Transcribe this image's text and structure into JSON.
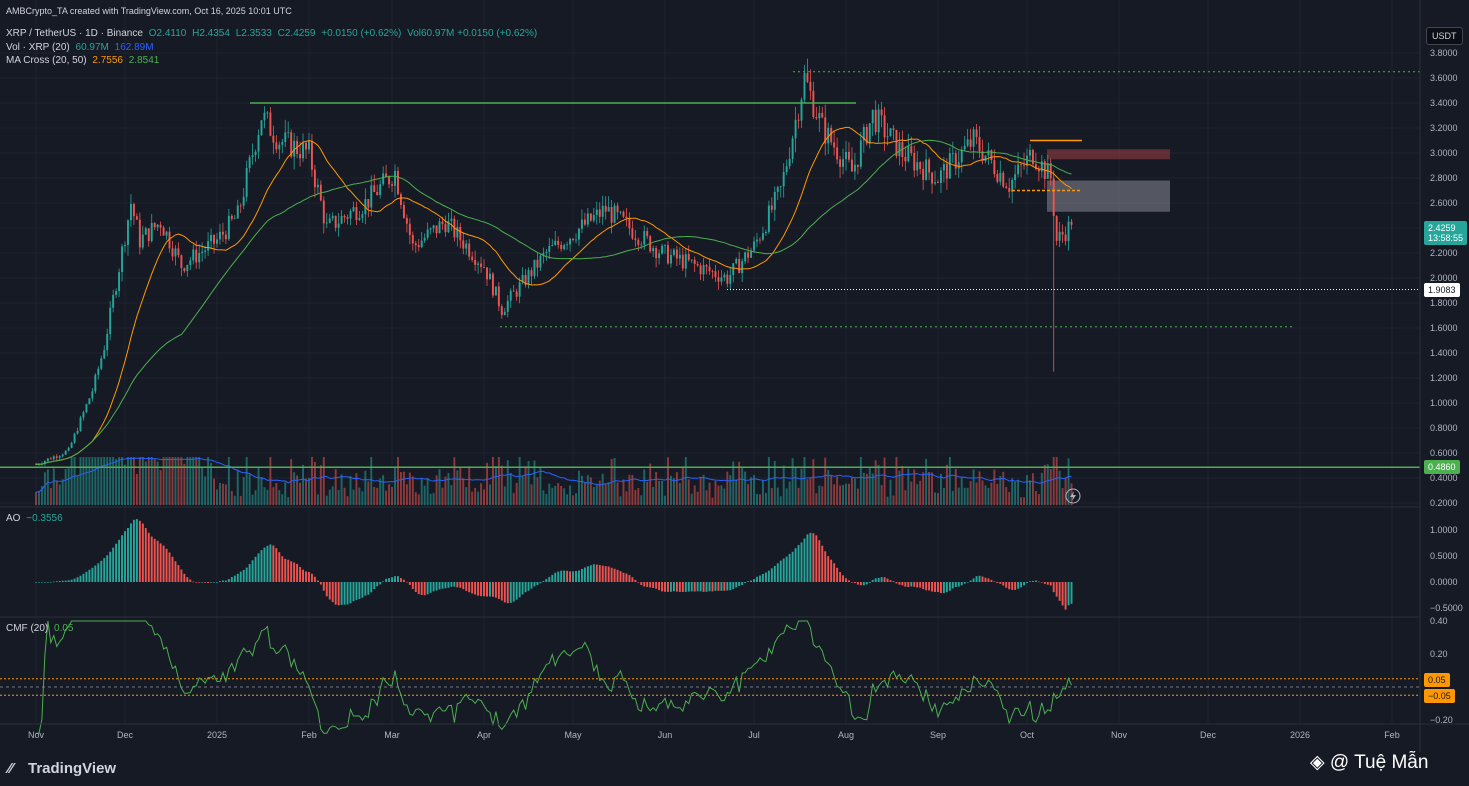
{
  "header": {
    "created_by": "AMBCrypto_TA created with TradingView.com, Oct 16, 2025 10:01 UTC",
    "symbol": "XRP / TetherUS · 1D · Binance",
    "ohlc": {
      "o": "O2.4110",
      "h": "H2.4354",
      "l": "L2.3533",
      "c": "C2.4259",
      "chg": "+0.0150 (+0.62%)"
    },
    "vol_inline": "Vol60.97M +0.0150 (+0.62%)",
    "vol_label": "Vol · XRP (20)",
    "vol_values": [
      "60.97M",
      "162.89M"
    ],
    "ma_label": "MA Cross (20, 50)",
    "ma_values": [
      "2.7556",
      "2.8541"
    ],
    "ao_label": "AO",
    "ao_value": "−0.3556",
    "cmf_label": "CMF (20)",
    "cmf_value": "0.05"
  },
  "currency": "USDT",
  "price_tags": {
    "last": "2.4259",
    "countdown": "13:58:55",
    "support_mid": "1.9083",
    "support_low": "0.4860",
    "cmf_pos": "0.05",
    "cmf_neg": "−0.05"
  },
  "colors": {
    "bg": "#161a25",
    "up": "#26a69a",
    "down": "#ef5350",
    "ma20": "#ff9800",
    "ma50": "#4caf50",
    "vol_ma": "#2962ff",
    "line_green": "#4caf50",
    "cmf": "#4caf50"
  },
  "chart_data": [
    {
      "type": "candlestick",
      "title": "XRP / TetherUS · 1D · Binance",
      "y_ticks": [
        "3.8000",
        "3.6000",
        "3.4000",
        "3.2000",
        "3.0000",
        "2.8000",
        "2.6000",
        "2.4000",
        "2.2000",
        "2.0000",
        "1.8000",
        "1.6000",
        "1.4000",
        "1.2000",
        "1.0000",
        "0.8000",
        "0.6000",
        "0.4000",
        "0.2000"
      ],
      "ylim": [
        0.2,
        3.8
      ],
      "x_ticks": [
        "Nov",
        "Dec",
        "2025",
        "Feb",
        "Mar",
        "Apr",
        "May",
        "Jun",
        "Jul",
        "Aug",
        "Sep",
        "Oct",
        "Nov",
        "Dec",
        "2026",
        "Feb"
      ],
      "keypoints": [
        {
          "date": "2024-11-01",
          "close": 0.51
        },
        {
          "date": "2024-11-12",
          "close": 0.62
        },
        {
          "date": "2024-11-20",
          "close": 1.1
        },
        {
          "date": "2024-11-24",
          "close": 1.45
        },
        {
          "date": "2024-12-03",
          "close": 2.6
        },
        {
          "date": "2024-12-06",
          "close": 2.3
        },
        {
          "date": "2024-12-13",
          "close": 2.45
        },
        {
          "date": "2024-12-20",
          "close": 2.1
        },
        {
          "date": "2025-01-01",
          "close": 2.3
        },
        {
          "date": "2025-01-08",
          "close": 2.5
        },
        {
          "date": "2025-01-16",
          "close": 3.3
        },
        {
          "date": "2025-01-22",
          "close": 3.1
        },
        {
          "date": "2025-02-01",
          "close": 3.0
        },
        {
          "date": "2025-02-07",
          "close": 2.4
        },
        {
          "date": "2025-02-20",
          "close": 2.6
        },
        {
          "date": "2025-03-02",
          "close": 2.85
        },
        {
          "date": "2025-03-08",
          "close": 2.25
        },
        {
          "date": "2025-03-19",
          "close": 2.45
        },
        {
          "date": "2025-04-01",
          "close": 2.1
        },
        {
          "date": "2025-04-07",
          "close": 1.75
        },
        {
          "date": "2025-04-22",
          "close": 2.2
        },
        {
          "date": "2025-05-12",
          "close": 2.55
        },
        {
          "date": "2025-05-31",
          "close": 2.2
        },
        {
          "date": "2025-06-22",
          "close": 2.0
        },
        {
          "date": "2025-07-01",
          "close": 2.25
        },
        {
          "date": "2025-07-10",
          "close": 2.7
        },
        {
          "date": "2025-07-18",
          "close": 3.6
        },
        {
          "date": "2025-07-24",
          "close": 3.2
        },
        {
          "date": "2025-08-03",
          "close": 2.85
        },
        {
          "date": "2025-08-10",
          "close": 3.3
        },
        {
          "date": "2025-08-20",
          "close": 3.0
        },
        {
          "date": "2025-09-01",
          "close": 2.8
        },
        {
          "date": "2025-09-13",
          "close": 3.1
        },
        {
          "date": "2025-09-25",
          "close": 2.75
        },
        {
          "date": "2025-10-03",
          "close": 3.0
        },
        {
          "date": "2025-10-09",
          "close": 2.8
        },
        {
          "date": "2025-10-11",
          "close": 2.3
        },
        {
          "date": "2025-10-16",
          "close": 2.4259
        }
      ],
      "flash_wick_low": 1.25,
      "levels": [
        {
          "price": 3.65,
          "style": "dotted"
        },
        {
          "price": 3.4,
          "style": "solid"
        },
        {
          "price": 1.9083,
          "style": "dotted-white"
        },
        {
          "price": 1.61,
          "style": "dotted"
        },
        {
          "price": 0.486,
          "style": "solid"
        },
        {
          "price": 3.1,
          "style": "orange"
        },
        {
          "price": 2.7,
          "style": "orange-dashed"
        }
      ],
      "zones": [
        {
          "from": 2.95,
          "to": 3.03,
          "color": "red"
        },
        {
          "from": 2.53,
          "to": 2.78,
          "color": "grey"
        }
      ]
    },
    {
      "type": "bar",
      "title": "AO",
      "y_ticks": [
        "1.0000",
        "0.5000",
        "0.0000",
        "−0.5000"
      ],
      "ylim": [
        -0.55,
        1.2
      ]
    },
    {
      "type": "line",
      "title": "CMF (20)",
      "y_ticks": [
        "0.40",
        "0.20",
        "−0.20"
      ],
      "ylim": [
        -0.3,
        0.42
      ]
    }
  ],
  "branding": {
    "logo": "TradingView",
    "watermark": "@ Tuệ Mẫn"
  }
}
